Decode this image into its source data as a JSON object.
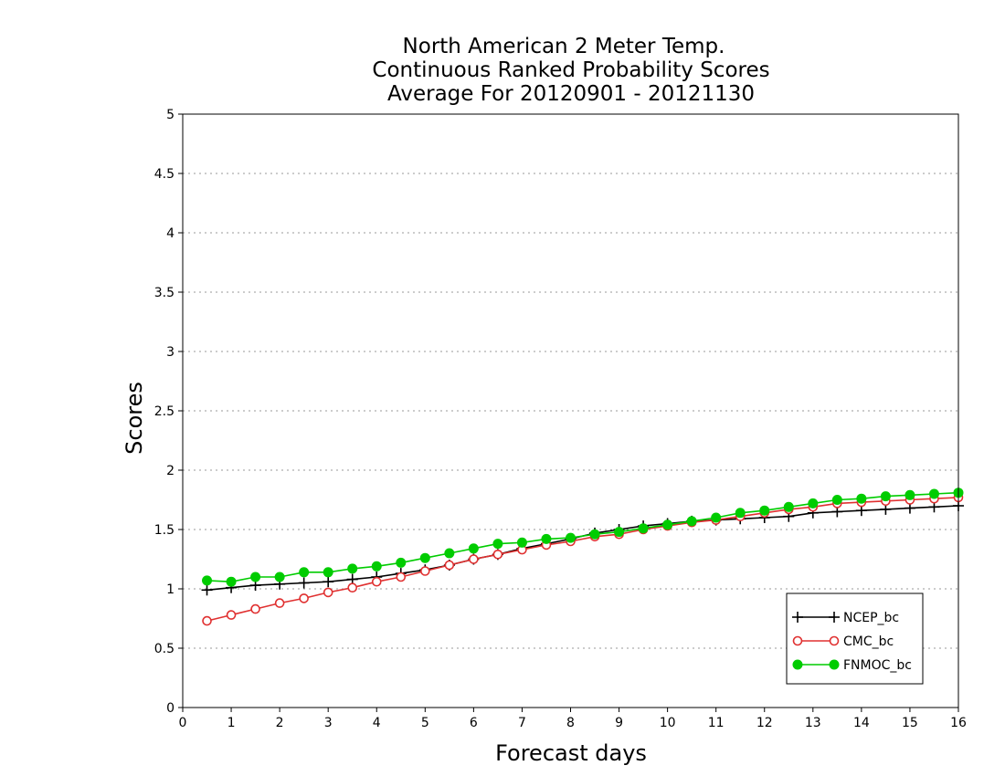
{
  "chart_data": {
    "type": "line",
    "title": [
      "North American 2 Meter Temp.",
      "Continuous Ranked Probability Scores",
      "Average For 20120901 - 20121130"
    ],
    "xlabel": "Forecast days",
    "ylabel": "Scores",
    "xlim": [
      0,
      16
    ],
    "ylim": [
      0,
      5
    ],
    "xticks": [
      "0",
      "1",
      "2",
      "3",
      "4",
      "5",
      "6",
      "7",
      "8",
      "9",
      "10",
      "11",
      "12",
      "13",
      "14",
      "15",
      "16"
    ],
    "yticks": [
      "0",
      "0.5",
      "1",
      "1.5",
      "2",
      "2.5",
      "3",
      "3.5",
      "4",
      "4.5",
      "5"
    ],
    "grid": "horizontal dotted",
    "legend_position": "bottom-right",
    "x": [
      0.5,
      1,
      1.5,
      2,
      2.5,
      3,
      3.5,
      4,
      4.5,
      5,
      5.5,
      6,
      6.5,
      7,
      7.5,
      8,
      8.5,
      9,
      9.5,
      10,
      10.5,
      11,
      11.5,
      12,
      12.5,
      13,
      13.5,
      14,
      14.5,
      15,
      15.5,
      16
    ],
    "series": [
      {
        "name": "NCEP_bc",
        "color": "#000000",
        "marker": "plus",
        "values": [
          0.99,
          1.01,
          1.03,
          1.04,
          1.05,
          1.06,
          1.08,
          1.1,
          1.13,
          1.16,
          1.2,
          1.25,
          1.29,
          1.34,
          1.38,
          1.42,
          1.47,
          1.5,
          1.53,
          1.55,
          1.57,
          1.58,
          1.59,
          1.6,
          1.61,
          1.64,
          1.65,
          1.66,
          1.67,
          1.68,
          1.69,
          1.7
        ]
      },
      {
        "name": "CMC_bc",
        "color": "#e03030",
        "marker": "open-circle",
        "values": [
          0.73,
          0.78,
          0.83,
          0.88,
          0.92,
          0.97,
          1.01,
          1.06,
          1.1,
          1.15,
          1.2,
          1.25,
          1.29,
          1.33,
          1.37,
          1.4,
          1.44,
          1.46,
          1.5,
          1.53,
          1.56,
          1.58,
          1.61,
          1.64,
          1.67,
          1.69,
          1.72,
          1.73,
          1.74,
          1.75,
          1.76,
          1.77
        ]
      },
      {
        "name": "FNMOC_bc",
        "color": "#00cc00",
        "marker": "filled-circle",
        "values": [
          1.07,
          1.06,
          1.1,
          1.1,
          1.14,
          1.14,
          1.17,
          1.19,
          1.22,
          1.26,
          1.3,
          1.34,
          1.38,
          1.39,
          1.42,
          1.43,
          1.46,
          1.48,
          1.51,
          1.54,
          1.57,
          1.6,
          1.64,
          1.66,
          1.69,
          1.72,
          1.75,
          1.76,
          1.78,
          1.79,
          1.8,
          1.81
        ]
      }
    ]
  }
}
